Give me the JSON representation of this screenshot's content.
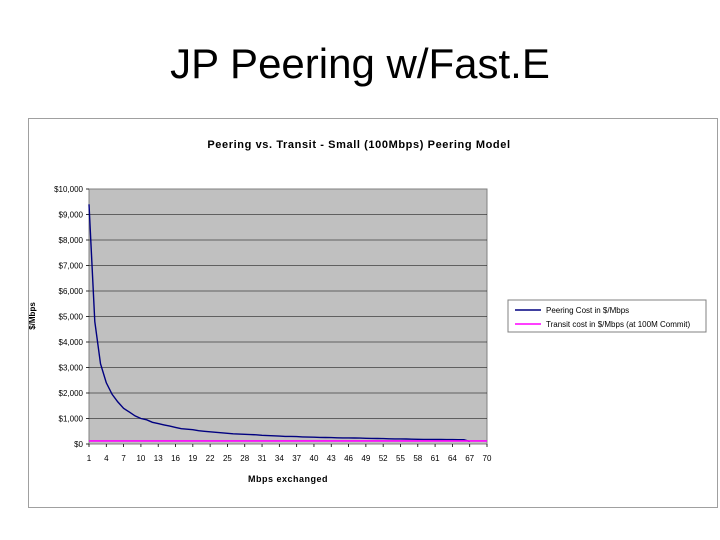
{
  "slide": {
    "title": "JP Peering w/Fast.E"
  },
  "chart_data": {
    "type": "line",
    "title": "Peering vs. Transit - Small (100Mbps) Peering Model",
    "xlabel": "Mbps exchanged",
    "ylabel": "$/Mbps",
    "xlim": [
      1,
      70
    ],
    "ylim": [
      0,
      10000
    ],
    "x_ticks": [
      1,
      4,
      7,
      10,
      13,
      16,
      19,
      22,
      25,
      28,
      31,
      34,
      37,
      40,
      43,
      46,
      49,
      52,
      55,
      58,
      61,
      64,
      67,
      70
    ],
    "y_ticks": [
      {
        "value": 0,
        "label": "$0"
      },
      {
        "value": 1000,
        "label": "$1,000"
      },
      {
        "value": 2000,
        "label": "$2,000"
      },
      {
        "value": 3000,
        "label": "$3,000"
      },
      {
        "value": 4000,
        "label": "$4,000"
      },
      {
        "value": 5000,
        "label": "$5,000"
      },
      {
        "value": 6000,
        "label": "$6,000"
      },
      {
        "value": 7000,
        "label": "$7,000"
      },
      {
        "value": 8000,
        "label": "$8,000"
      },
      {
        "value": 9000,
        "label": "$9,000"
      },
      {
        "value": 10000,
        "label": "$10,000"
      }
    ],
    "grid": true,
    "legend_position": "right",
    "series": [
      {
        "name": "Peering Cost in $/Mbps",
        "color": "#000080",
        "x": [
          1,
          2,
          3,
          4,
          5,
          6,
          7,
          8,
          9,
          10,
          11,
          12,
          13,
          14,
          15,
          16,
          17,
          18,
          19,
          20,
          21,
          22,
          23,
          24,
          25,
          26,
          27,
          28,
          29,
          30,
          31,
          32,
          33,
          34,
          35,
          36,
          37,
          38,
          39,
          40,
          41,
          42,
          43,
          44,
          45,
          46,
          47,
          48,
          49,
          50,
          51,
          52,
          53,
          54,
          55,
          56,
          57,
          58,
          59,
          60,
          61,
          62,
          63,
          64,
          65,
          66,
          67
        ],
        "values": [
          9400,
          4800,
          3150,
          2400,
          1950,
          1650,
          1400,
          1250,
          1100,
          1000,
          950,
          850,
          800,
          750,
          700,
          650,
          600,
          580,
          560,
          520,
          500,
          480,
          460,
          440,
          420,
          400,
          390,
          380,
          370,
          360,
          340,
          330,
          320,
          310,
          300,
          300,
          290,
          280,
          270,
          265,
          260,
          255,
          250,
          245,
          240,
          240,
          235,
          230,
          225,
          220,
          215,
          210,
          205,
          200,
          200,
          195,
          190,
          185,
          182,
          180,
          178,
          176,
          174,
          172,
          170,
          168,
          100
        ]
      },
      {
        "name": "Transit cost in $/Mbps (at 100M Commit)",
        "color": "#ff00ff",
        "x": [
          1,
          70
        ],
        "values": [
          120,
          120
        ]
      }
    ]
  }
}
